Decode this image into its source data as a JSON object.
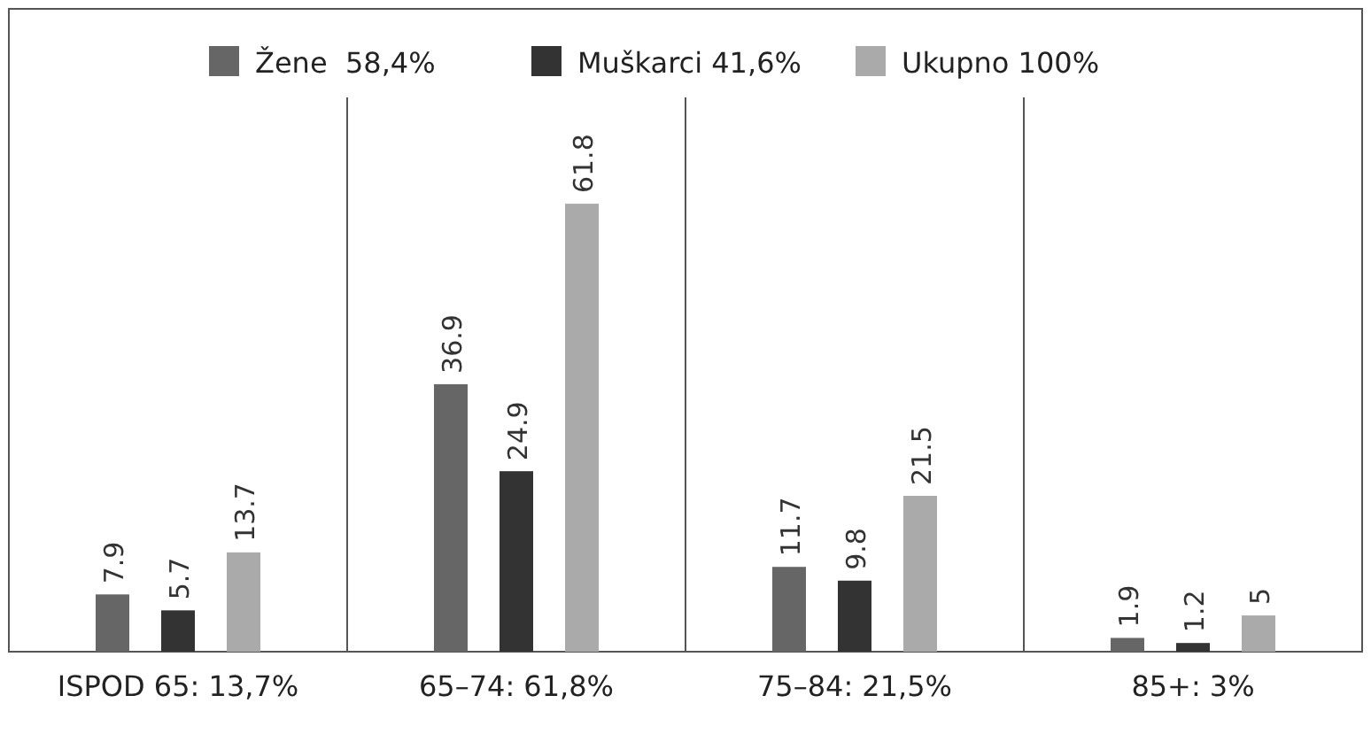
{
  "chart_data": {
    "type": "bar",
    "categories": [
      "ISPOD 65: 13,7%",
      "65–74: 61,8%",
      "75–84: 21,5%",
      "85+: 3%"
    ],
    "series": [
      {
        "name": "Žene  58,4%",
        "color": "#666666",
        "values": [
          7.9,
          36.9,
          11.7,
          1.9
        ]
      },
      {
        "name": "Muškarci 41,6%",
        "color": "#333333",
        "values": [
          5.7,
          24.9,
          9.8,
          1.2
        ]
      },
      {
        "name": "Ukupno 100%",
        "color": "#aaaaaa",
        "values": [
          13.7,
          61.8,
          21.5,
          5
        ]
      }
    ],
    "data_labels": true,
    "grid": "x",
    "legend": "top"
  }
}
